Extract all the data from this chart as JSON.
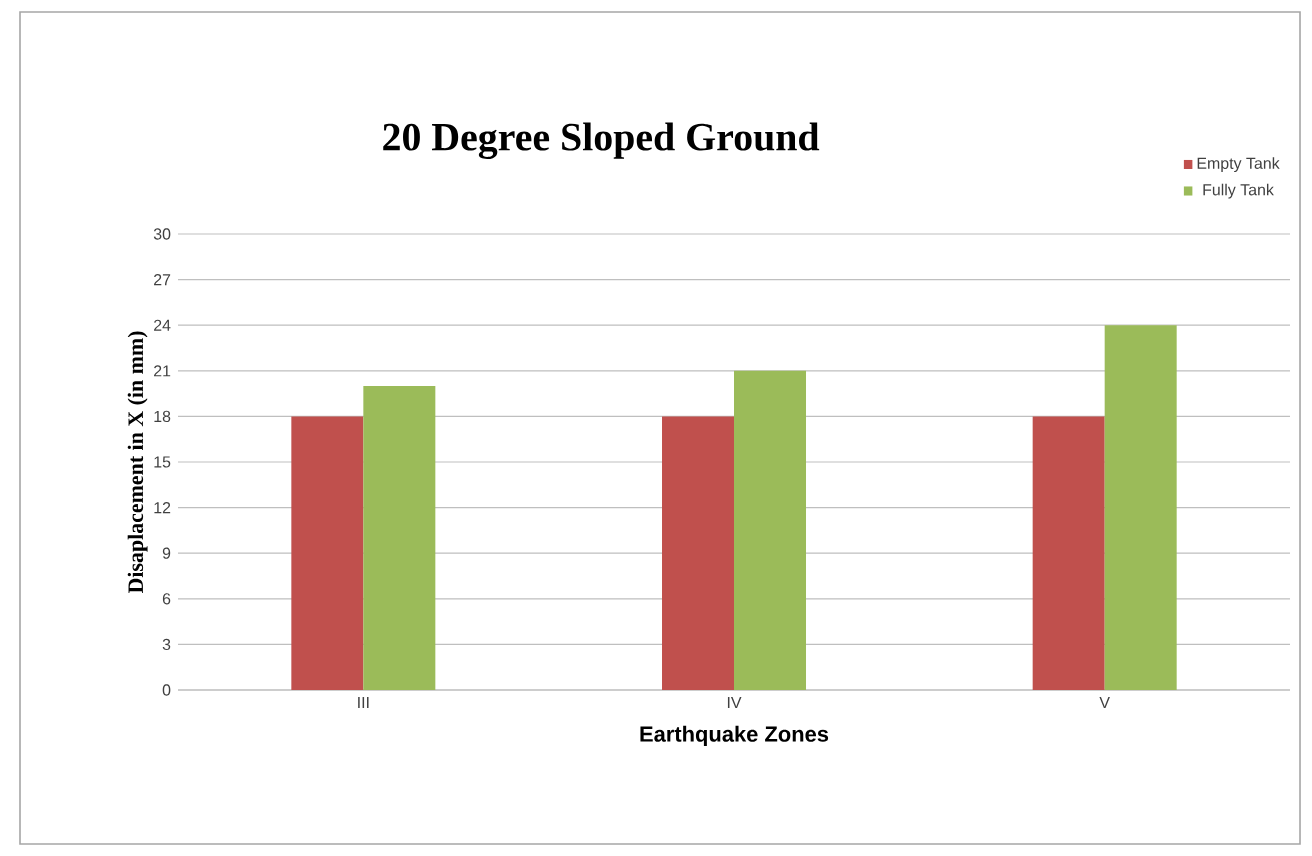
{
  "chart_data": {
    "type": "bar",
    "title": "20 Degree Sloped Ground",
    "xlabel": "Earthquake Zones",
    "ylabel": "Disaplacement in X (in mm)",
    "categories": [
      "III",
      "IV",
      "V"
    ],
    "series": [
      {
        "name": "Empty Tank",
        "color": "#c0504d",
        "values": [
          18,
          18,
          18
        ]
      },
      {
        "name": "Fully Tank",
        "color": "#9bbb59",
        "values": [
          20,
          21,
          24
        ]
      }
    ],
    "ylim": [
      0,
      30
    ],
    "yticks": [
      0,
      3,
      6,
      9,
      12,
      15,
      18,
      21,
      24,
      27,
      30
    ],
    "grid": "y",
    "legend": "top right"
  }
}
